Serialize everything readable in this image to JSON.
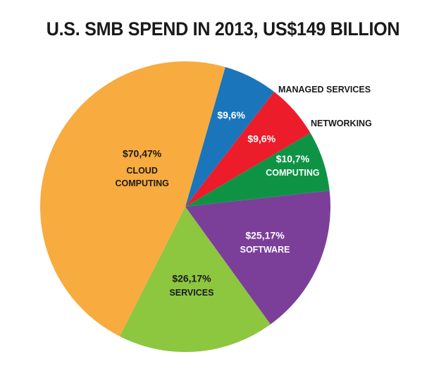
{
  "chart_data": {
    "type": "pie",
    "title": "U.S. SMB SPEND IN 2013, US$149 BILLION",
    "slices": [
      {
        "name": "MANAGED SERVICES",
        "value": 9,
        "percent": 6,
        "label": "$9,6%",
        "color": "#1b75bb"
      },
      {
        "name": "NETWORKING",
        "value": 9,
        "percent": 6,
        "label": "$9,6%",
        "color": "#ec1c2b"
      },
      {
        "name": "COMPUTING",
        "value": 10,
        "percent": 7,
        "label": "$10,7%",
        "color": "#0e9345"
      },
      {
        "name": "SOFTWARE",
        "value": 25,
        "percent": 17,
        "label": "$25,17%",
        "color": "#7b3f9a"
      },
      {
        "name": "SERVICES",
        "value": 26,
        "percent": 17,
        "label": "$26,17%",
        "color": "#8dc63f"
      },
      {
        "name": "CLOUD\nCOMPUTING",
        "value": 70,
        "percent": 47,
        "label": "$70,47%",
        "color": "#f8ab3e"
      }
    ]
  }
}
